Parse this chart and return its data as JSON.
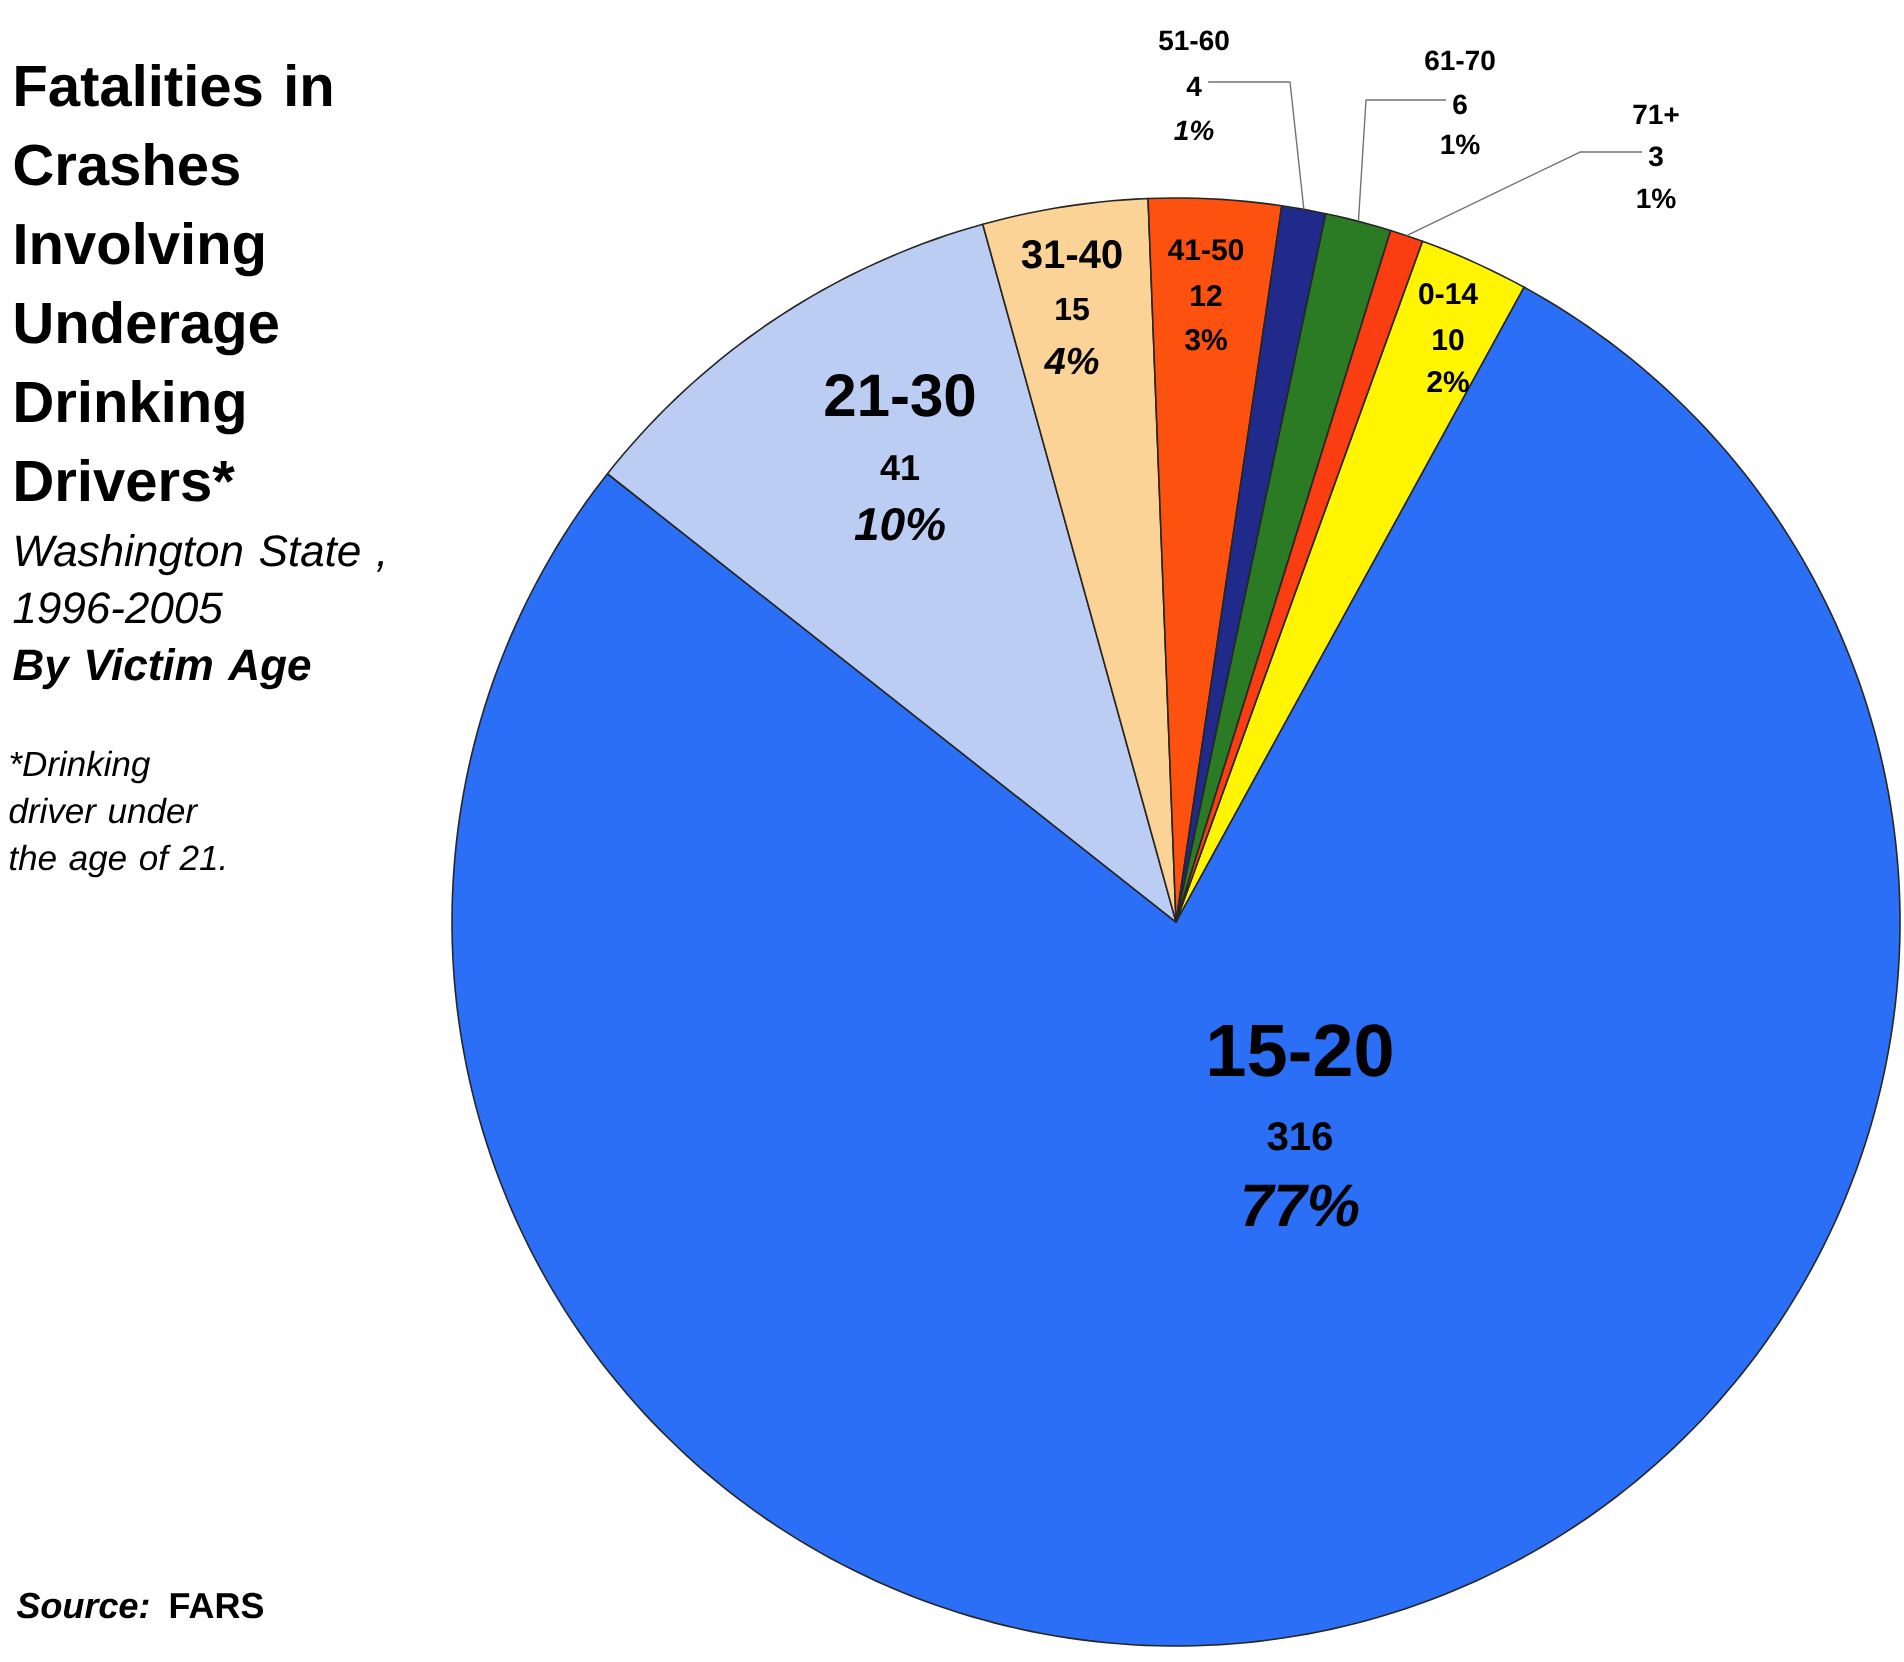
{
  "chart_data": {
    "type": "pie",
    "title": "Fatalities in Crashes Involving Underage Drinking Drivers*",
    "subtitle": "Washington State , 1996-2005",
    "annotations": [
      "By Victim Age",
      "*Drinking driver under the age of 21.",
      "*Source:* FARS",
      "2%",
      "77%",
      "10%",
      "4%",
      "3%",
      "1%",
      "1%",
      "1%"
    ],
    "categories": [
      "0-14",
      "15-20",
      "21-30",
      "31-40",
      "41-50",
      "51-60",
      "61-70",
      "71+"
    ],
    "values": [
      10,
      316,
      41,
      15,
      12,
      4,
      6,
      3
    ],
    "colors": [
      "#fff500",
      "#2b6ff7",
      "#bccdf4",
      "#fcd396",
      "#fd5110",
      "#1f2a8a",
      "#2b7b24",
      "#fb3d12"
    ],
    "data_labels": true
  }
}
